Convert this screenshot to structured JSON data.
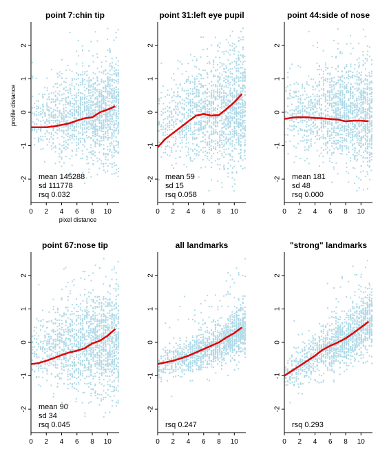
{
  "chart_data": [
    {
      "type": "scatter",
      "title": "point 7:chin tip",
      "xlabel": "pixel distance",
      "ylabel": "profile distance",
      "xlim": [
        0,
        11.5
      ],
      "ylim": [
        -2.7,
        2.7
      ],
      "xticks": [
        0,
        2,
        4,
        6,
        8,
        10
      ],
      "yticks": [
        -2,
        -1,
        0,
        1,
        2
      ],
      "stats": [
        "mean 145288",
        "sd 111778",
        "rsq 0.032"
      ],
      "scatter": {
        "center": [
          0,
          0,
          -0.1,
          -0.3
        ],
        "spread": 0.75,
        "density": 1.0,
        "trend_follow": 0.35
      },
      "series": [
        {
          "name": "",
          "x": [
            0,
            1,
            2,
            3,
            4,
            5,
            6,
            7,
            8,
            9,
            10,
            11
          ],
          "y": [
            -0.45,
            -0.45,
            -0.45,
            -0.42,
            -0.38,
            -0.33,
            -0.25,
            -0.18,
            -0.15,
            0.0,
            0.08,
            0.18
          ]
        }
      ]
    },
    {
      "type": "scatter",
      "title": "point 31:left eye pupil",
      "xlabel": "",
      "ylabel": "",
      "xlim": [
        0,
        11.5
      ],
      "ylim": [
        -2.7,
        2.7
      ],
      "xticks": [
        0,
        2,
        4,
        6,
        8,
        10
      ],
      "yticks": [
        -2,
        -1,
        0,
        1,
        2
      ],
      "stats": [
        "mean 59",
        "sd 15",
        "rsq 0.058"
      ],
      "scatter": {
        "center": [
          -0.2,
          0,
          0.1,
          0.4
        ],
        "spread": 0.85,
        "density": 1.0,
        "trend_follow": 0.5
      },
      "series": [
        {
          "name": "",
          "x": [
            0,
            1,
            2,
            3,
            4,
            5,
            6,
            7,
            8,
            9,
            10,
            11
          ],
          "y": [
            -1.05,
            -0.8,
            -0.62,
            -0.45,
            -0.27,
            -0.1,
            -0.05,
            -0.1,
            -0.08,
            0.1,
            0.3,
            0.55
          ]
        }
      ]
    },
    {
      "type": "scatter",
      "title": "point 44:side of nose",
      "xlabel": "",
      "ylabel": "",
      "xlim": [
        0,
        11.5
      ],
      "ylim": [
        -2.7,
        2.7
      ],
      "xticks": [
        0,
        2,
        4,
        6,
        8,
        10
      ],
      "yticks": [
        -2,
        -1,
        0,
        1,
        2
      ],
      "stats": [
        "mean 181",
        "sd 48",
        "rsq 0.000"
      ],
      "scatter": {
        "center": [
          0,
          0.1,
          0,
          -0.2
        ],
        "spread": 0.8,
        "density": 1.0,
        "trend_follow": 0.2
      },
      "series": [
        {
          "name": "",
          "x": [
            0,
            1,
            2,
            3,
            4,
            5,
            6,
            7,
            8,
            9,
            10,
            11
          ],
          "y": [
            -0.2,
            -0.16,
            -0.15,
            -0.15,
            -0.17,
            -0.18,
            -0.2,
            -0.22,
            -0.27,
            -0.25,
            -0.25,
            -0.27
          ]
        }
      ]
    },
    {
      "type": "scatter",
      "title": "point 67:nose tip",
      "xlabel": "",
      "ylabel": "",
      "xlim": [
        0,
        11.5
      ],
      "ylim": [
        -2.7,
        2.7
      ],
      "xticks": [
        0,
        2,
        4,
        6,
        8,
        10
      ],
      "yticks": [
        -2,
        -1,
        0,
        1,
        2
      ],
      "stats": [
        "mean 90",
        "sd 34",
        "rsq 0.045"
      ],
      "scatter": {
        "center": [
          0,
          0,
          -0.05,
          -0.2
        ],
        "spread": 0.8,
        "density": 1.0,
        "trend_follow": 0.35
      },
      "series": [
        {
          "name": "",
          "x": [
            0,
            1,
            2,
            3,
            4,
            5,
            6,
            7,
            8,
            9,
            10,
            11
          ],
          "y": [
            -0.65,
            -0.62,
            -0.55,
            -0.47,
            -0.38,
            -0.3,
            -0.25,
            -0.18,
            -0.03,
            0.05,
            0.2,
            0.4
          ]
        }
      ]
    },
    {
      "type": "scatter",
      "title": "all landmarks",
      "xlabel": "",
      "ylabel": "",
      "xlim": [
        0,
        11.5
      ],
      "ylim": [
        -2.7,
        2.7
      ],
      "xticks": [
        0,
        2,
        4,
        6,
        8,
        10
      ],
      "yticks": [
        -2,
        -1,
        0,
        1,
        2
      ],
      "stats": [
        "rsq 0.247"
      ],
      "scatter": {
        "center": [
          0,
          0,
          0,
          0
        ],
        "spread": 0.32,
        "density": 0.85,
        "trend_follow": 1.0
      },
      "series": [
        {
          "name": "",
          "x": [
            0,
            1,
            2,
            3,
            4,
            5,
            6,
            7,
            8,
            9,
            10,
            11
          ],
          "y": [
            -0.65,
            -0.6,
            -0.55,
            -0.48,
            -0.4,
            -0.3,
            -0.2,
            -0.1,
            0.0,
            0.15,
            0.28,
            0.45
          ]
        }
      ]
    },
    {
      "type": "scatter",
      "title": "\"strong\" landmarks",
      "xlabel": "",
      "ylabel": "",
      "xlim": [
        0,
        11.5
      ],
      "ylim": [
        -2.7,
        2.7
      ],
      "xticks": [
        0,
        2,
        4,
        6,
        8,
        10
      ],
      "yticks": [
        -2,
        -1,
        0,
        1,
        2
      ],
      "stats": [
        "rsq 0.293"
      ],
      "scatter": {
        "center": [
          0,
          0,
          0,
          0
        ],
        "spread": 0.42,
        "density": 0.85,
        "trend_follow": 1.0
      },
      "series": [
        {
          "name": "",
          "x": [
            0,
            1,
            2,
            3,
            4,
            5,
            6,
            7,
            8,
            9,
            10,
            11
          ],
          "y": [
            -1.0,
            -0.85,
            -0.7,
            -0.55,
            -0.4,
            -0.22,
            -0.1,
            0.0,
            0.12,
            0.28,
            0.45,
            0.62
          ]
        }
      ]
    }
  ],
  "colors": {
    "points": "#add8e6",
    "trend": "#e00000",
    "axis": "#000000"
  }
}
